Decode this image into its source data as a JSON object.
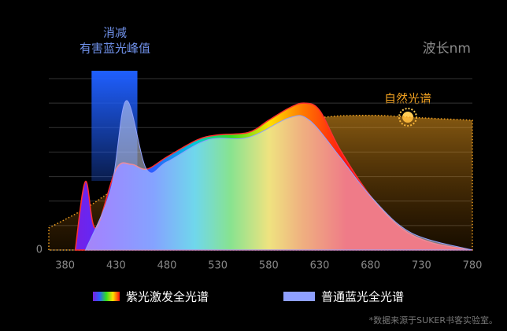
{
  "chart_data": {
    "type": "area",
    "x_label": "波长nm",
    "xlim": [
      364,
      780
    ],
    "xticks": [
      380,
      430,
      480,
      530,
      580,
      630,
      680,
      730,
      780
    ],
    "ylim": [
      0,
      7
    ],
    "yticks": [
      0
    ],
    "ygrid": [
      1,
      2,
      3,
      4,
      5,
      6,
      7
    ],
    "grid": true,
    "highlight": {
      "lines": [
        "消减",
        "有害蓝光峰值"
      ],
      "x": [
        406,
        451
      ],
      "color": "#1f5fff"
    },
    "series": [
      {
        "name": "自然光谱",
        "color": "#f0a020",
        "style": "dotted",
        "x": [
          364,
          400,
          430,
          480,
          530,
          580,
          630,
          680,
          730,
          780
        ],
        "values": [
          0.9,
          1.7,
          2.5,
          3.5,
          4.3,
          4.9,
          5.4,
          5.5,
          5.4,
          5.3
        ]
      },
      {
        "name": "紫光激发全光谱",
        "color": "rainbow",
        "x": [
          390,
          400,
          410,
          430,
          445,
          460,
          480,
          510,
          530,
          560,
          580,
          600,
          615,
          630,
          650,
          680,
          710,
          740,
          780
        ],
        "values": [
          0,
          2.8,
          0.9,
          3.3,
          3.5,
          3.3,
          3.8,
          4.5,
          4.7,
          4.8,
          5.3,
          5.8,
          6.0,
          5.7,
          4.1,
          2.2,
          0.9,
          0.3,
          0
        ]
      },
      {
        "name": "普通蓝光全光谱",
        "color": "#8fa0ff",
        "x": [
          400,
          425,
          440,
          460,
          480,
          520,
          560,
          600,
          620,
          650,
          680,
          720,
          780
        ],
        "values": [
          0,
          2.5,
          6.1,
          3.3,
          3.6,
          4.5,
          4.6,
          5.4,
          5.3,
          3.8,
          2.2,
          0.7,
          0
        ]
      }
    ],
    "footnote": "*数据来源于SUKER书客实验室。"
  }
}
